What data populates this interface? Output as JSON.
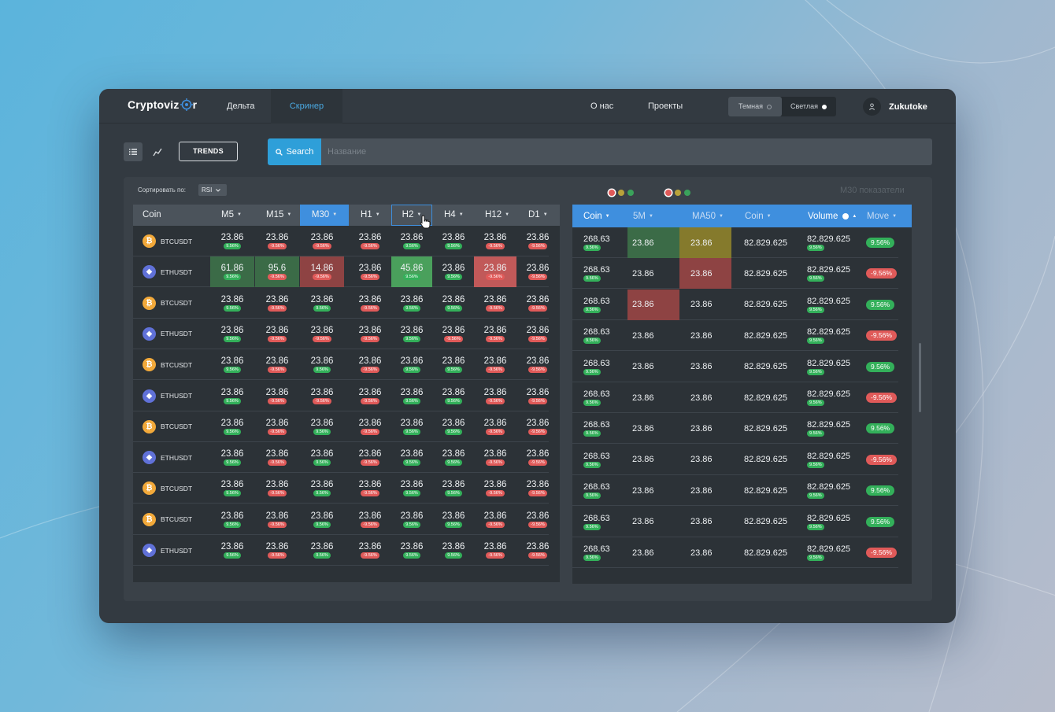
{
  "header": {
    "logo_text": "Cryptoviz",
    "logo_suffix": "r",
    "nav": {
      "delta": "Дельта",
      "screener": "Скринер",
      "about": "О нас",
      "projects": "Проекты"
    },
    "theme": {
      "dark": "Темная",
      "light": "Светлая",
      "selected": "light"
    },
    "user": {
      "name": "Zukutoke",
      "icon": "user-icon"
    }
  },
  "toolbar": {
    "list_view_icon": "list-icon",
    "chart_view_icon": "trend-line-icon",
    "trends_label": "TRENDS",
    "search_label": "Search",
    "search_placeholder": "Название"
  },
  "panel": {
    "sort_label": "Сортировать по:",
    "sort_value": "RSI",
    "right_title": "M30 показатели",
    "colors": {
      "accent": "#3f8fde",
      "positive": "#33b05a",
      "negative": "#e05a59",
      "warning": "#857a2c"
    }
  },
  "left_table": {
    "headers": [
      "Coin",
      "M5",
      "M15",
      "M30",
      "H1",
      "H2",
      "H4",
      "H12",
      "D1"
    ],
    "active_header": "M30",
    "hover_header": "H2",
    "rows": [
      {
        "coin": "BTCUSDT",
        "icon": "bitcoin-icon",
        "type": "btc",
        "values": [
          "23.86",
          "23.86",
          "23.86",
          "23.86",
          "23.86",
          "23.86",
          "23.86",
          "23.86"
        ],
        "pills": [
          "9.56%",
          "-9.56%",
          "-9.56%",
          "-9.56%",
          "9.56%",
          "9.56%",
          "-9.56%",
          "-9.56%"
        ],
        "hl": [
          "",
          "",
          "",
          "",
          "",
          "",
          "",
          ""
        ]
      },
      {
        "coin": "ETHUSDT",
        "icon": "ethereum-icon",
        "type": "eth",
        "values": [
          "61.86",
          "95.6",
          "14.86",
          "23.86",
          "45.86",
          "23.86",
          "23.86",
          "23.86"
        ],
        "pills": [
          "9.56%",
          "-9.56%",
          "-9.56%",
          "-9.56%",
          "9.56%",
          "9.56%",
          "-9.56%",
          "-9.56%"
        ],
        "hl": [
          "dgreen",
          "dgreen",
          "red",
          "",
          "bgreen",
          "",
          "bred",
          ""
        ]
      },
      {
        "coin": "BTCUSDT",
        "icon": "bitcoin-icon",
        "type": "btc",
        "values": [
          "23.86",
          "23.86",
          "23.86",
          "23.86",
          "23.86",
          "23.86",
          "23.86",
          "23.86"
        ],
        "pills": [
          "9.56%",
          "-9.56%",
          "9.56%",
          "-9.56%",
          "9.56%",
          "9.56%",
          "-9.56%",
          "-9.56%"
        ],
        "hl": [
          "",
          "",
          "",
          "",
          "",
          "",
          "",
          ""
        ]
      },
      {
        "coin": "ETHUSDT",
        "icon": "ethereum-icon",
        "type": "eth",
        "values": [
          "23.86",
          "23.86",
          "23.86",
          "23.86",
          "23.86",
          "23.86",
          "23.86",
          "23.86"
        ],
        "pills": [
          "9.56%",
          "-9.56%",
          "-9.56%",
          "-9.56%",
          "9.56%",
          "-9.56%",
          "-9.56%",
          "-9.56%"
        ],
        "hl": [
          "",
          "",
          "",
          "",
          "",
          "",
          "",
          ""
        ]
      },
      {
        "coin": "BTCUSDT",
        "icon": "bitcoin-icon",
        "type": "btc",
        "values": [
          "23.86",
          "23.86",
          "23.86",
          "23.86",
          "23.86",
          "23.86",
          "23.86",
          "23.86"
        ],
        "pills": [
          "9.56%",
          "-9.56%",
          "9.56%",
          "-9.56%",
          "9.56%",
          "9.56%",
          "-9.56%",
          "-9.56%"
        ],
        "hl": [
          "",
          "",
          "",
          "",
          "",
          "",
          "",
          ""
        ]
      },
      {
        "coin": "ETHUSDT",
        "icon": "ethereum-icon",
        "type": "eth",
        "values": [
          "23.86",
          "23.86",
          "23.86",
          "23.86",
          "23.86",
          "23.86",
          "23.86",
          "23.86"
        ],
        "pills": [
          "9.56%",
          "-9.56%",
          "-9.56%",
          "-9.56%",
          "9.56%",
          "9.56%",
          "-9.56%",
          "-9.56%"
        ],
        "hl": [
          "",
          "",
          "",
          "",
          "",
          "",
          "",
          ""
        ]
      },
      {
        "coin": "BTCUSDT",
        "icon": "bitcoin-icon",
        "type": "btc",
        "values": [
          "23.86",
          "23.86",
          "23.86",
          "23.86",
          "23.86",
          "23.86",
          "23.86",
          "23.86"
        ],
        "pills": [
          "9.56%",
          "-9.56%",
          "9.56%",
          "-9.56%",
          "9.56%",
          "9.56%",
          "-9.56%",
          "-9.56%"
        ],
        "hl": [
          "",
          "",
          "",
          "",
          "",
          "",
          "",
          ""
        ]
      },
      {
        "coin": "ETHUSDT",
        "icon": "ethereum-icon",
        "type": "eth",
        "values": [
          "23.86",
          "23.86",
          "23.86",
          "23.86",
          "23.86",
          "23.86",
          "23.86",
          "23.86"
        ],
        "pills": [
          "9.56%",
          "-9.56%",
          "9.56%",
          "-9.56%",
          "9.56%",
          "9.56%",
          "-9.56%",
          "-9.56%"
        ],
        "hl": [
          "",
          "",
          "",
          "",
          "",
          "",
          "",
          ""
        ]
      },
      {
        "coin": "BTCUSDT",
        "icon": "bitcoin-icon",
        "type": "btc",
        "values": [
          "23.86",
          "23.86",
          "23.86",
          "23.86",
          "23.86",
          "23.86",
          "23.86",
          "23.86"
        ],
        "pills": [
          "9.56%",
          "-9.56%",
          "9.56%",
          "-9.56%",
          "9.56%",
          "9.56%",
          "-9.56%",
          "-9.56%"
        ],
        "hl": [
          "",
          "",
          "",
          "",
          "",
          "",
          "",
          ""
        ]
      },
      {
        "coin": "BTCUSDT",
        "icon": "bitcoin-icon",
        "type": "btc",
        "values": [
          "23.86",
          "23.86",
          "23.86",
          "23.86",
          "23.86",
          "23.86",
          "23.86",
          "23.86"
        ],
        "pills": [
          "9.56%",
          "-9.56%",
          "9.56%",
          "-9.56%",
          "9.56%",
          "9.56%",
          "-9.56%",
          "-9.56%"
        ],
        "hl": [
          "",
          "",
          "",
          "",
          "",
          "",
          "",
          ""
        ]
      },
      {
        "coin": "ETHUSDT",
        "icon": "ethereum-icon",
        "type": "eth",
        "values": [
          "23.86",
          "23.86",
          "23.86",
          "23.86",
          "23.86",
          "23.86",
          "23.86",
          "23.86"
        ],
        "pills": [
          "9.56%",
          "-9.56%",
          "9.56%",
          "-9.56%",
          "9.56%",
          "9.56%",
          "-9.56%",
          "-9.56%"
        ],
        "hl": [
          "",
          "",
          "",
          "",
          "",
          "",
          "",
          ""
        ]
      }
    ]
  },
  "right_table": {
    "headers": [
      "Coin",
      "5M",
      "MA50",
      "Coin",
      "Volume",
      "Move"
    ],
    "rows": [
      {
        "price": "268.63",
        "price_pill": "9.56%",
        "m5": "23.86",
        "ma50": "23.86",
        "coin": "82.829.625",
        "volume": "82.829.625",
        "volume_pill": "9.56%",
        "move": "9.56%",
        "move_sign": "g",
        "hl5": "dgreen",
        "hlma": "olive"
      },
      {
        "price": "268.63",
        "price_pill": "9.56%",
        "m5": "23.86",
        "ma50": "23.86",
        "coin": "82.829.625",
        "volume": "82.829.625",
        "volume_pill": "9.56%",
        "move": "-9.56%",
        "move_sign": "r",
        "hl5": "",
        "hlma": "red"
      },
      {
        "price": "268.63",
        "price_pill": "9.56%",
        "m5": "23.86",
        "ma50": "23.86",
        "coin": "82.829.625",
        "volume": "82.829.625",
        "volume_pill": "9.56%",
        "move": "9.56%",
        "move_sign": "g",
        "hl5": "red",
        "hlma": ""
      },
      {
        "price": "268.63",
        "price_pill": "9.56%",
        "m5": "23.86",
        "ma50": "23.86",
        "coin": "82.829.625",
        "volume": "82.829.625",
        "volume_pill": "9.56%",
        "move": "-9.56%",
        "move_sign": "r",
        "hl5": "",
        "hlma": ""
      },
      {
        "price": "268.63",
        "price_pill": "9.56%",
        "m5": "23.86",
        "ma50": "23.86",
        "coin": "82.829.625",
        "volume": "82.829.625",
        "volume_pill": "9.56%",
        "move": "9.56%",
        "move_sign": "g",
        "hl5": "",
        "hlma": ""
      },
      {
        "price": "268.63",
        "price_pill": "9.56%",
        "m5": "23.86",
        "ma50": "23.86",
        "coin": "82.829.625",
        "volume": "82.829.625",
        "volume_pill": "9.56%",
        "move": "-9.56%",
        "move_sign": "r",
        "hl5": "",
        "hlma": ""
      },
      {
        "price": "268.63",
        "price_pill": "9.56%",
        "m5": "23.86",
        "ma50": "23.86",
        "coin": "82.829.625",
        "volume": "82.829.625",
        "volume_pill": "9.56%",
        "move": "9.56%",
        "move_sign": "g",
        "hl5": "",
        "hlma": ""
      },
      {
        "price": "268.63",
        "price_pill": "9.56%",
        "m5": "23.86",
        "ma50": "23.86",
        "coin": "82.829.625",
        "volume": "82.829.625",
        "volume_pill": "9.56%",
        "move": "-9.56%",
        "move_sign": "r",
        "hl5": "",
        "hlma": ""
      },
      {
        "price": "268.63",
        "price_pill": "9.56%",
        "m5": "23.86",
        "ma50": "23.86",
        "coin": "82.829.625",
        "volume": "82.829.625",
        "volume_pill": "9.56%",
        "move": "9.56%",
        "move_sign": "g",
        "hl5": "",
        "hlma": ""
      },
      {
        "price": "268.63",
        "price_pill": "9.56%",
        "m5": "23.86",
        "ma50": "23.86",
        "coin": "82.829.625",
        "volume": "82.829.625",
        "volume_pill": "9.56%",
        "move": "9.56%",
        "move_sign": "g",
        "hl5": "",
        "hlma": ""
      },
      {
        "price": "268.63",
        "price_pill": "9.56%",
        "m5": "23.86",
        "ma50": "23.86",
        "coin": "82.829.625",
        "volume": "82.829.625",
        "volume_pill": "9.56%",
        "move": "-9.56%",
        "move_sign": "r",
        "hl5": "",
        "hlma": ""
      }
    ]
  }
}
